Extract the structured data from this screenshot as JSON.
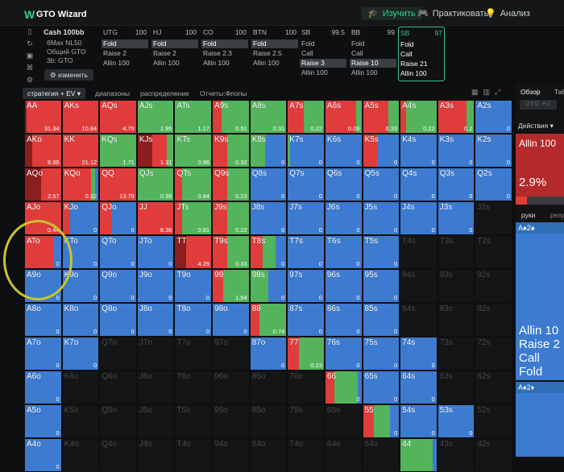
{
  "app": {
    "title": "GTO Wizard",
    "logo": "W"
  },
  "nav": [
    {
      "label": "Изучить",
      "icon": "graduation-cap-icon",
      "glyph": "🎓"
    },
    {
      "label": "Практиковать",
      "icon": "gamepad-icon",
      "glyph": "🎮"
    },
    {
      "label": "Анализ",
      "icon": "bulb-icon",
      "glyph": "💡"
    }
  ],
  "setup": {
    "title": "Cash 100bb",
    "lines": [
      "6Max NL50",
      "Общий GTO",
      "3b: GTO"
    ],
    "change_label": "изменить"
  },
  "positions": [
    {
      "name": "UTG",
      "stack": "100",
      "actions": [
        "Fold",
        "Raise 2",
        "Allin 100"
      ],
      "selected": 0,
      "active": false
    },
    {
      "name": "HJ",
      "stack": "100",
      "actions": [
        "Fold",
        "Raise 2",
        "Allin 100"
      ],
      "selected": 0,
      "active": false
    },
    {
      "name": "CO",
      "stack": "100",
      "actions": [
        "Fold",
        "Raise 2.3",
        "Allin 100"
      ],
      "selected": 0,
      "active": false
    },
    {
      "name": "BTN",
      "stack": "100",
      "actions": [
        "Fold",
        "Raise 2.5",
        "Allin 100"
      ],
      "selected": 0,
      "active": false
    },
    {
      "name": "SB",
      "stack": "99.5",
      "actions": [
        "Fold",
        "Call",
        "Raise 3",
        "Allin 100"
      ],
      "selected": 2,
      "active": false
    },
    {
      "name": "BB",
      "stack": "99",
      "actions": [
        "Fold",
        "Call",
        "Raise 10",
        "Allin 100"
      ],
      "selected": 2,
      "active": false
    },
    {
      "name": "SB",
      "stack": "97",
      "actions": [
        "Fold",
        "Call",
        "Raise 21",
        "Allin 100"
      ],
      "selected": -1,
      "active": true
    }
  ],
  "tabs": [
    "стратегия + EV",
    "диапазоны",
    "распределение",
    "Отчеты:Флопы"
  ],
  "right": {
    "tab_overview": "Обзор",
    "tab_other": "Таб",
    "btn_a": "UTG",
    "btn_b": "HJ",
    "actions_label": "Действия",
    "allin_label": "Allin 100",
    "allin_pct": "2.9%",
    "hands_tab": "руки",
    "results_tab": "резу",
    "card_top": "A♠2♠",
    "big_lines": [
      "Allin 10",
      "Raise 2",
      "Call",
      "Fold"
    ],
    "card_bot": "A♦2♦"
  },
  "colors": {
    "fold": "#3c7bd0",
    "call": "#53b45c",
    "raise": "#e03c3c",
    "allin": "#8b1e1e",
    "dead": "#141516"
  },
  "matrix": [
    [
      [
        "AA",
        "31.34",
        [
          0,
          0,
          0.95,
          0.05
        ]
      ],
      [
        "AKs",
        "10.84",
        [
          0,
          0,
          1,
          0
        ]
      ],
      [
        "AQs",
        "4.79",
        [
          0,
          0,
          1,
          0
        ]
      ],
      [
        "AJs",
        "1.95",
        [
          0,
          1,
          0,
          0
        ]
      ],
      [
        "ATs",
        "1.17",
        [
          0,
          1,
          0,
          0
        ]
      ],
      [
        "A9s",
        "0.51",
        [
          0,
          0.75,
          0.25,
          0
        ]
      ],
      [
        "A8s",
        "0.31",
        [
          0,
          1,
          0,
          0
        ]
      ],
      [
        "A7s",
        "0.22",
        [
          0,
          0.55,
          0.45,
          0
        ]
      ],
      [
        "A6s",
        "0.09",
        [
          0,
          0.15,
          0.85,
          0
        ]
      ],
      [
        "A5s",
        "0.33",
        [
          0,
          0.3,
          0.7,
          0
        ]
      ],
      [
        "A4s",
        "0.22",
        [
          0,
          0.85,
          0.15,
          0
        ]
      ],
      [
        "A3s",
        "0.2",
        [
          0,
          0.2,
          0.8,
          0
        ]
      ],
      [
        "A2s",
        "0",
        [
          1,
          0,
          0,
          0
        ]
      ]
    ],
    [
      [
        "AKo",
        "8.96",
        [
          0,
          0,
          0.8,
          0.2
        ]
      ],
      [
        "KK",
        "21.12",
        [
          0,
          0,
          1,
          0
        ]
      ],
      [
        "KQs",
        "1.71",
        [
          0,
          1,
          0,
          0
        ]
      ],
      [
        "KJs",
        "1.31",
        [
          0,
          0.2,
          0.4,
          0.4
        ]
      ],
      [
        "KTs",
        "0.96",
        [
          0,
          1,
          0,
          0
        ]
      ],
      [
        "K9s",
        "0.32",
        [
          0,
          0.6,
          0.4,
          0
        ]
      ],
      [
        "K8s",
        "0",
        [
          0.6,
          0.4,
          0,
          0
        ]
      ],
      [
        "K7s",
        "0",
        [
          0.95,
          0.05,
          0,
          0
        ]
      ],
      [
        "K6s",
        "0",
        [
          1,
          0,
          0,
          0
        ]
      ],
      [
        "K5s",
        "0",
        [
          0.6,
          0,
          0.4,
          0
        ]
      ],
      [
        "K4s",
        "0",
        [
          1,
          0,
          0,
          0
        ]
      ],
      [
        "K3s",
        "0",
        [
          1,
          0,
          0,
          0
        ]
      ],
      [
        "K2s",
        "0",
        [
          1,
          0,
          0,
          0
        ]
      ]
    ],
    [
      [
        "AQo",
        "2.57",
        [
          0,
          0,
          0.55,
          0.45
        ]
      ],
      [
        "KQo",
        "0.32",
        [
          0.1,
          0.1,
          0.8,
          0
        ]
      ],
      [
        "QQ",
        "13.79",
        [
          0,
          0,
          1,
          0
        ]
      ],
      [
        "QJs",
        "0.99",
        [
          0,
          1,
          0,
          0
        ]
      ],
      [
        "QTs",
        "0.84",
        [
          0,
          0.8,
          0.2,
          0
        ]
      ],
      [
        "Q9s",
        "0.23",
        [
          0,
          0.6,
          0.4,
          0
        ]
      ],
      [
        "Q8s",
        "0",
        [
          1,
          0,
          0,
          0
        ]
      ],
      [
        "Q7s",
        "0",
        [
          1,
          0,
          0,
          0
        ]
      ],
      [
        "Q6s",
        "0",
        [
          1,
          0,
          0,
          0
        ]
      ],
      [
        "Q5s",
        "0",
        [
          1,
          0,
          0,
          0
        ]
      ],
      [
        "Q4s",
        "0",
        [
          1,
          0,
          0,
          0
        ]
      ],
      [
        "Q3s",
        "0",
        [
          1,
          0,
          0,
          0
        ]
      ],
      [
        "Q2s",
        "0",
        [
          1,
          0,
          0,
          0
        ]
      ]
    ],
    [
      [
        "AJo",
        "0.44",
        [
          0,
          0,
          1,
          0
        ]
      ],
      [
        "KJo",
        "0",
        [
          0.8,
          0,
          0.2,
          0
        ]
      ],
      [
        "QJo",
        "0",
        [
          0.7,
          0,
          0.3,
          0
        ]
      ],
      [
        "JJ",
        "8.36",
        [
          0,
          0,
          1,
          0
        ]
      ],
      [
        "JTs",
        "0.81",
        [
          0,
          0.8,
          0.2,
          0
        ]
      ],
      [
        "J9s",
        "0.22",
        [
          0,
          0.6,
          0.4,
          0
        ]
      ],
      [
        "J8s",
        "0",
        [
          1,
          0,
          0,
          0
        ]
      ],
      [
        "J7s",
        "0",
        [
          1,
          0,
          0,
          0
        ]
      ],
      [
        "J6s",
        "0",
        [
          1,
          0,
          0,
          0
        ]
      ],
      [
        "J5s",
        "0",
        [
          1,
          0,
          0,
          0
        ]
      ],
      [
        "J4s",
        "0",
        [
          1,
          0,
          0,
          0
        ]
      ],
      [
        "J3s",
        "0",
        [
          1,
          0,
          0,
          0
        ]
      ],
      [
        "J2s",
        "",
        null
      ]
    ],
    [
      [
        "ATo",
        "0",
        [
          0.2,
          0,
          0.8,
          0
        ]
      ],
      [
        "KTo",
        "0",
        [
          1,
          0,
          0,
          0
        ]
      ],
      [
        "QTo",
        "0",
        [
          1,
          0,
          0,
          0
        ]
      ],
      [
        "JTo",
        "0",
        [
          1,
          0,
          0,
          0
        ]
      ],
      [
        "TT",
        "4.29",
        [
          0,
          0,
          0.7,
          0.3
        ]
      ],
      [
        "T9s",
        "0.33",
        [
          0,
          0.6,
          0.4,
          0
        ]
      ],
      [
        "T8s",
        "0",
        [
          0.3,
          0.35,
          0.35,
          0
        ]
      ],
      [
        "T7s",
        "0",
        [
          1,
          0,
          0,
          0
        ]
      ],
      [
        "T6s",
        "0",
        [
          1,
          0,
          0,
          0
        ]
      ],
      [
        "T5s",
        "0",
        [
          1,
          0,
          0,
          0
        ]
      ],
      [
        "T4s",
        "",
        null
      ],
      [
        "T3s",
        "",
        null
      ],
      [
        "T2s",
        "",
        null
      ]
    ],
    [
      [
        "A9o",
        "0",
        [
          1,
          0,
          0,
          0
        ]
      ],
      [
        "K9o",
        "0",
        [
          1,
          0,
          0,
          0
        ]
      ],
      [
        "Q9o",
        "0",
        [
          1,
          0,
          0,
          0
        ]
      ],
      [
        "J9o",
        "0",
        [
          1,
          0,
          0,
          0
        ]
      ],
      [
        "T9o",
        "0",
        [
          1,
          0,
          0,
          0
        ]
      ],
      [
        "99",
        "1.54",
        [
          0,
          0.7,
          0.3,
          0
        ]
      ],
      [
        "98s",
        "0",
        [
          0.5,
          0.5,
          0,
          0
        ]
      ],
      [
        "97s",
        "0",
        [
          1,
          0,
          0,
          0
        ]
      ],
      [
        "96s",
        "0",
        [
          1,
          0,
          0,
          0
        ]
      ],
      [
        "95s",
        "0",
        [
          1,
          0,
          0,
          0
        ]
      ],
      [
        "94s",
        "",
        null
      ],
      [
        "93s",
        "",
        null
      ],
      [
        "92s",
        "",
        null
      ]
    ],
    [
      [
        "A8o",
        "0",
        [
          1,
          0,
          0,
          0
        ]
      ],
      [
        "K8o",
        "0",
        [
          1,
          0,
          0,
          0
        ]
      ],
      [
        "Q8o",
        "0",
        [
          1,
          0,
          0,
          0
        ]
      ],
      [
        "J8o",
        "0",
        [
          1,
          0,
          0,
          0
        ]
      ],
      [
        "T8o",
        "0",
        [
          1,
          0,
          0,
          0
        ]
      ],
      [
        "98o",
        "0",
        [
          1,
          0,
          0,
          0
        ]
      ],
      [
        "88",
        "0.74",
        [
          0,
          0.75,
          0.25,
          0
        ]
      ],
      [
        "87s",
        "0",
        [
          1,
          0,
          0,
          0
        ]
      ],
      [
        "86s",
        "0",
        [
          1,
          0,
          0,
          0
        ]
      ],
      [
        "85s",
        "0",
        [
          1,
          0,
          0,
          0
        ]
      ],
      [
        "84s",
        "",
        null
      ],
      [
        "83s",
        "",
        null
      ],
      [
        "82s",
        "",
        null
      ]
    ],
    [
      [
        "A7o",
        "0",
        [
          1,
          0,
          0,
          0
        ]
      ],
      [
        "K7o",
        "0",
        [
          1,
          0,
          0,
          0
        ]
      ],
      [
        "Q7o",
        "",
        null
      ],
      [
        "J7o",
        "",
        null
      ],
      [
        "T7o",
        "",
        null
      ],
      [
        "97o",
        "",
        null
      ],
      [
        "87o",
        "0",
        [
          1,
          0,
          0,
          0
        ]
      ],
      [
        "77",
        "0.23",
        [
          0,
          0.7,
          0.3,
          0
        ]
      ],
      [
        "76s",
        "0",
        [
          1,
          0,
          0,
          0
        ]
      ],
      [
        "75s",
        "0",
        [
          1,
          0,
          0,
          0
        ]
      ],
      [
        "74s",
        "0",
        [
          1,
          0,
          0,
          0
        ]
      ],
      [
        "73s",
        "",
        null
      ],
      [
        "72s",
        "",
        null
      ]
    ],
    [
      [
        "A6o",
        "0",
        [
          1,
          0,
          0,
          0
        ]
      ],
      [
        "K6o",
        "",
        null
      ],
      [
        "Q6o",
        "",
        null
      ],
      [
        "J6o",
        "",
        null
      ],
      [
        "T6o",
        "",
        null
      ],
      [
        "96o",
        "",
        null
      ],
      [
        "86o",
        "",
        null
      ],
      [
        "76o",
        "",
        null
      ],
      [
        "66",
        "0",
        [
          0.1,
          0.65,
          0.25,
          0
        ]
      ],
      [
        "65s",
        "0",
        [
          1,
          0,
          0,
          0
        ]
      ],
      [
        "64s",
        "0",
        [
          1,
          0,
          0,
          0
        ]
      ],
      [
        "63s",
        "",
        null
      ],
      [
        "62s",
        "",
        null
      ]
    ],
    [
      [
        "A5o",
        "0",
        [
          1,
          0,
          0,
          0
        ]
      ],
      [
        "K5o",
        "",
        null
      ],
      [
        "Q5o",
        "",
        null
      ],
      [
        "J5o",
        "",
        null
      ],
      [
        "T5o",
        "",
        null
      ],
      [
        "95o",
        "",
        null
      ],
      [
        "85o",
        "",
        null
      ],
      [
        "75o",
        "",
        null
      ],
      [
        "65o",
        "",
        null
      ],
      [
        "55",
        "0",
        [
          0.25,
          0.45,
          0.3,
          0
        ]
      ],
      [
        "54s",
        "0",
        [
          1,
          0,
          0,
          0
        ]
      ],
      [
        "53s",
        "0",
        [
          1,
          0,
          0,
          0
        ]
      ],
      [
        "52s",
        "",
        null
      ]
    ],
    [
      [
        "A4o",
        "0",
        [
          1,
          0,
          0,
          0
        ]
      ],
      [
        "K4o",
        "",
        null
      ],
      [
        "Q4o",
        "",
        null
      ],
      [
        "J4o",
        "",
        null
      ],
      [
        "T4o",
        "",
        null
      ],
      [
        "94o",
        "",
        null
      ],
      [
        "84o",
        "",
        null
      ],
      [
        "74o",
        "",
        null
      ],
      [
        "64o",
        "",
        null
      ],
      [
        "54o",
        "",
        null
      ],
      [
        "44",
        "",
        [
          0.1,
          0.9,
          0,
          0
        ]
      ],
      [
        "43s",
        "",
        null
      ],
      [
        "42s",
        "",
        null
      ]
    ]
  ]
}
